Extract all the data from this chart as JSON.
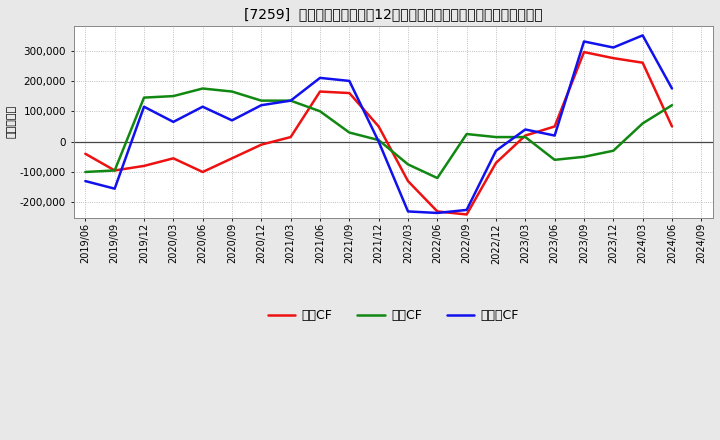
{
  "title": "[7259]  キャッシュフローの12か月移動合計の対前年同期増減額の推移",
  "ylabel": "（百万円）",
  "background_color": "#e8e8e8",
  "plot_bg_color": "#ffffff",
  "grid_color": "#aaaaaa",
  "ylim": [
    -250000,
    380000
  ],
  "yticks": [
    -200000,
    -100000,
    0,
    100000,
    200000,
    300000
  ],
  "x_labels": [
    "2019/06",
    "2019/09",
    "2019/12",
    "2020/03",
    "2020/06",
    "2020/09",
    "2020/12",
    "2021/03",
    "2021/06",
    "2021/09",
    "2021/12",
    "2022/03",
    "2022/06",
    "2022/09",
    "2022/12",
    "2023/03",
    "2023/06",
    "2023/09",
    "2023/12",
    "2024/03",
    "2024/06",
    "2024/09"
  ],
  "eigyo_cf": [
    -40000,
    -95000,
    -80000,
    -55000,
    -100000,
    -55000,
    -10000,
    15000,
    165000,
    160000,
    50000,
    -130000,
    -230000,
    -240000,
    -70000,
    20000,
    50000,
    295000,
    275000,
    260000,
    50000,
    null
  ],
  "toshi_cf": [
    -100000,
    -95000,
    145000,
    150000,
    175000,
    165000,
    135000,
    135000,
    100000,
    30000,
    5000,
    -75000,
    -120000,
    25000,
    15000,
    15000,
    -60000,
    -50000,
    -30000,
    60000,
    120000,
    null
  ],
  "free_cf": [
    -130000,
    -155000,
    115000,
    65000,
    115000,
    70000,
    120000,
    135000,
    210000,
    200000,
    0,
    -230000,
    -235000,
    -225000,
    -30000,
    40000,
    20000,
    330000,
    310000,
    350000,
    175000,
    null
  ],
  "legend_labels": [
    "営業CF",
    "投資CF",
    "フリーCF"
  ],
  "line_colors": [
    "#ee1111",
    "#118811",
    "#1111ee"
  ],
  "line_width": 1.8
}
